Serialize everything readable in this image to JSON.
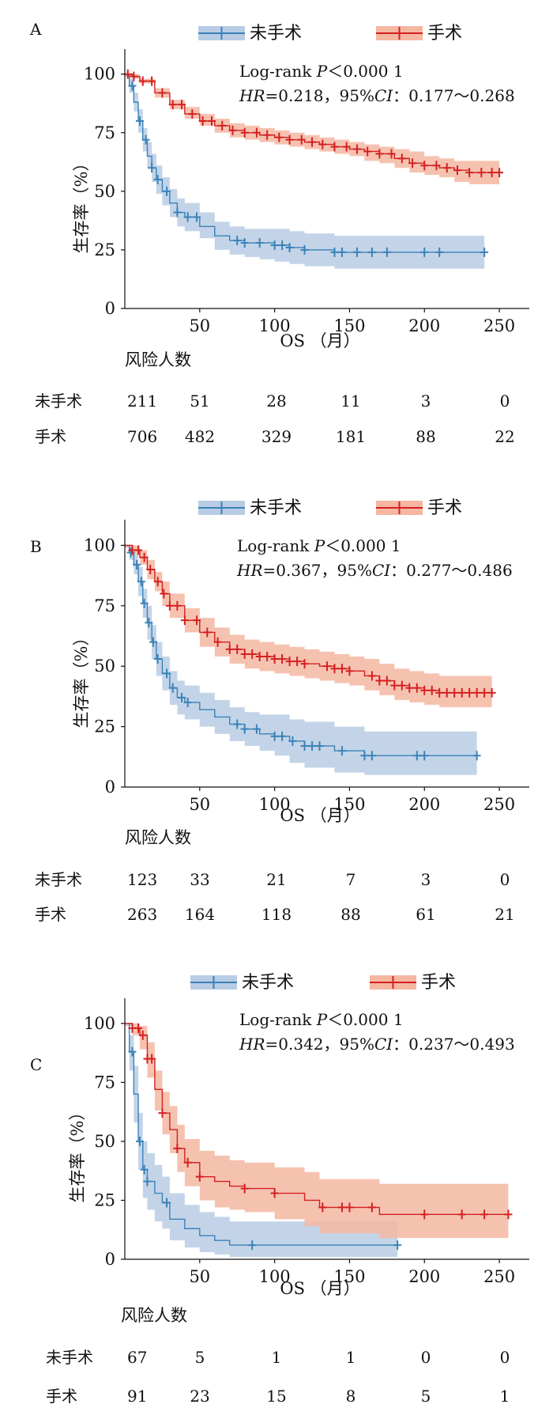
{
  "colors": {
    "unoperated": "#3a82b8",
    "unoperated_band": "#b8cce4",
    "operated": "#d42020",
    "operated_band": "#f5b7a2",
    "axis": "#111111"
  },
  "chart_data": [
    {
      "panel": "A",
      "type": "line",
      "subtype": "kaplan-meier",
      "xlabel": "OS （月）",
      "ylabel": "生存率（%）",
      "xlim": [
        0,
        270
      ],
      "ylim": [
        0,
        108
      ],
      "xticks": [
        "50",
        "100",
        "150",
        "200",
        "250"
      ],
      "yticks": [
        "0",
        "25",
        "50",
        "75",
        "100"
      ],
      "stats": {
        "line1_prefix": "Log-rank ",
        "line1_p": "P",
        "line1_rest": "＜0.000 1",
        "hr": "HR",
        "line2_mid": "=0.218，95%",
        "ci": "CI",
        "line2_end": "：0.177～0.268"
      },
      "legend_position": "top",
      "series": [
        {
          "name": "未手术",
          "x": [
            0,
            3,
            6,
            9,
            12,
            15,
            18,
            21,
            25,
            30,
            35,
            40,
            50,
            60,
            70,
            80,
            90,
            100,
            110,
            120,
            140,
            160,
            180,
            200,
            220,
            240
          ],
          "y": [
            100,
            95,
            88,
            80,
            72,
            65,
            60,
            55,
            50,
            45,
            41,
            39,
            35,
            31,
            29,
            28,
            28,
            27,
            26,
            25,
            24,
            24,
            24,
            24,
            24,
            24
          ],
          "lower": [
            99,
            92,
            84,
            75,
            67,
            60,
            54,
            49,
            44,
            39,
            35,
            33,
            30,
            25,
            23,
            22,
            21,
            20,
            19,
            18,
            17,
            17,
            17,
            17,
            17,
            17
          ],
          "upper": [
            100,
            98,
            92,
            85,
            77,
            71,
            66,
            61,
            56,
            51,
            47,
            45,
            41,
            37,
            35,
            34,
            34,
            34,
            33,
            32,
            31,
            31,
            31,
            31,
            31,
            31
          ],
          "censor_x": [
            5,
            10,
            14,
            18,
            22,
            28,
            35,
            42,
            48,
            75,
            80,
            90,
            100,
            105,
            110,
            120,
            140,
            145,
            155,
            165,
            175,
            200,
            210,
            240
          ]
        },
        {
          "name": "手术",
          "x": [
            0,
            5,
            10,
            20,
            30,
            40,
            50,
            60,
            70,
            80,
            90,
            100,
            110,
            120,
            130,
            140,
            150,
            160,
            170,
            180,
            190,
            200,
            210,
            220,
            230,
            240,
            250
          ],
          "y": [
            100,
            99,
            97,
            92,
            87,
            83,
            80,
            78,
            76,
            75,
            74,
            73,
            72,
            71,
            70,
            69,
            68,
            67,
            66,
            64,
            62,
            61,
            60,
            59,
            58,
            58,
            58
          ],
          "lower": [
            99,
            98,
            96,
            90,
            85,
            81,
            78,
            75,
            73,
            72,
            71,
            70,
            69,
            68,
            67,
            66,
            65,
            63,
            62,
            60,
            58,
            57,
            56,
            54,
            53,
            53,
            53
          ],
          "upper": [
            100,
            100,
            98,
            94,
            89,
            86,
            83,
            81,
            79,
            78,
            77,
            76,
            75,
            74,
            73,
            72,
            71,
            70,
            69,
            68,
            67,
            65,
            64,
            63,
            63,
            63,
            63
          ],
          "censor_x": [
            2,
            6,
            12,
            18,
            25,
            32,
            38,
            45,
            52,
            58,
            65,
            72,
            80,
            88,
            95,
            103,
            110,
            118,
            125,
            132,
            140,
            148,
            155,
            162,
            170,
            178,
            185,
            192,
            200,
            208,
            215,
            222,
            230,
            238,
            245,
            250
          ]
        }
      ],
      "risk_table": {
        "title": "风险人数",
        "rows": [
          {
            "label": "未手术",
            "values": [
              "211",
              "51",
              "28",
              "11",
              "3",
              "0"
            ]
          },
          {
            "label": "手术",
            "values": [
              "706",
              "482",
              "329",
              "181",
              "88",
              "22"
            ]
          }
        ]
      }
    },
    {
      "panel": "B",
      "type": "line",
      "subtype": "kaplan-meier",
      "xlabel": "OS （月）",
      "ylabel": "生存率（%）",
      "xlim": [
        0,
        270
      ],
      "ylim": [
        0,
        108
      ],
      "xticks": [
        "50",
        "100",
        "150",
        "200",
        "250"
      ],
      "yticks": [
        "0",
        "25",
        "50",
        "75",
        "100"
      ],
      "stats": {
        "line1_prefix": "Log-rank ",
        "line1_p": "P",
        "line1_rest": "＜0.000 1",
        "hr": "HR",
        "line2_mid": "=0.367，95%",
        "ci": "CI",
        "line2_end": "：0.277～0.486"
      },
      "legend_position": "top",
      "series": [
        {
          "name": "未手术",
          "x": [
            0,
            3,
            6,
            9,
            12,
            15,
            18,
            21,
            25,
            30,
            35,
            40,
            50,
            60,
            70,
            80,
            90,
            100,
            110,
            120,
            140,
            160,
            180,
            200,
            220,
            235
          ],
          "y": [
            100,
            97,
            92,
            85,
            76,
            68,
            60,
            53,
            47,
            41,
            37,
            35,
            32,
            29,
            26,
            24,
            22,
            21,
            19,
            17,
            15,
            13,
            13,
            13,
            13,
            13
          ],
          "lower": [
            99,
            94,
            88,
            79,
            70,
            61,
            53,
            46,
            40,
            34,
            30,
            28,
            25,
            22,
            19,
            17,
            15,
            13,
            10,
            8,
            6,
            5,
            5,
            5,
            5,
            5
          ],
          "upper": [
            100,
            99,
            96,
            91,
            82,
            75,
            67,
            60,
            54,
            48,
            44,
            42,
            39,
            36,
            33,
            31,
            30,
            30,
            28,
            27,
            25,
            23,
            23,
            23,
            23,
            23
          ],
          "censor_x": [
            4,
            8,
            11,
            13,
            16,
            19,
            22,
            28,
            32,
            38,
            42,
            75,
            80,
            88,
            100,
            105,
            112,
            120,
            125,
            130,
            145,
            160,
            165,
            195,
            200,
            235
          ]
        },
        {
          "name": "手术",
          "x": [
            0,
            5,
            10,
            15,
            20,
            25,
            30,
            40,
            50,
            60,
            70,
            80,
            90,
            100,
            110,
            120,
            130,
            140,
            150,
            160,
            170,
            180,
            190,
            200,
            210,
            220,
            230,
            245
          ],
          "y": [
            100,
            98,
            95,
            90,
            85,
            80,
            75,
            69,
            64,
            60,
            57,
            55,
            54,
            53,
            52,
            51,
            50,
            49,
            48,
            46,
            44,
            42,
            41,
            40,
            39,
            39,
            39,
            39
          ],
          "lower": [
            99,
            96,
            92,
            86,
            81,
            75,
            70,
            64,
            58,
            54,
            51,
            49,
            48,
            47,
            46,
            45,
            44,
            43,
            42,
            40,
            38,
            36,
            35,
            34,
            33,
            33,
            33,
            33
          ],
          "upper": [
            100,
            100,
            98,
            94,
            89,
            85,
            80,
            74,
            70,
            66,
            63,
            61,
            60,
            59,
            58,
            57,
            56,
            55,
            54,
            53,
            51,
            49,
            48,
            47,
            46,
            46,
            46,
            46
          ],
          "censor_x": [
            5,
            9,
            13,
            17,
            22,
            26,
            30,
            35,
            40,
            48,
            55,
            62,
            70,
            75,
            80,
            85,
            90,
            95,
            100,
            105,
            110,
            115,
            120,
            135,
            140,
            145,
            150,
            165,
            170,
            175,
            180,
            185,
            190,
            195,
            200,
            205,
            210,
            215,
            220,
            225,
            230,
            235,
            240,
            245
          ]
        }
      ],
      "risk_table": {
        "title": "风险人数",
        "rows": [
          {
            "label": "未手术",
            "values": [
              "123",
              "33",
              "21",
              "7",
              "3",
              "0"
            ]
          },
          {
            "label": "手术",
            "values": [
              "263",
              "164",
              "118",
              "88",
              "61",
              "21"
            ]
          }
        ]
      }
    },
    {
      "panel": "C",
      "type": "line",
      "subtype": "kaplan-meier",
      "xlabel": "OS （月）",
      "ylabel": "生存率（%）",
      "xlim": [
        0,
        270
      ],
      "ylim": [
        0,
        108
      ],
      "xticks": [
        "50",
        "100",
        "150",
        "200",
        "250"
      ],
      "yticks": [
        "0",
        "25",
        "50",
        "75",
        "100"
      ],
      "stats": {
        "line1_prefix": "Log-rank ",
        "line1_p": "P",
        "line1_rest": "＜0.000 1",
        "hr": "HR",
        "line2_mid": "=0.342，95%",
        "ci": "CI",
        "line2_end": "：0.237～0.493"
      },
      "legend_position": "top",
      "series": [
        {
          "name": "未手术",
          "x": [
            0,
            3,
            6,
            9,
            12,
            15,
            20,
            25,
            30,
            40,
            50,
            60,
            70,
            80,
            100,
            120,
            150,
            182
          ],
          "y": [
            100,
            88,
            70,
            50,
            38,
            33,
            28,
            24,
            17,
            13,
            10,
            8,
            6,
            6,
            6,
            6,
            6,
            6
          ],
          "lower": [
            99,
            80,
            58,
            38,
            26,
            21,
            16,
            13,
            8,
            5,
            3,
            2,
            1,
            1,
            1,
            1,
            1,
            1
          ],
          "upper": [
            100,
            95,
            82,
            62,
            50,
            45,
            40,
            35,
            28,
            23,
            20,
            18,
            16,
            16,
            16,
            16,
            16,
            16
          ],
          "censor_x": [
            5,
            10,
            13,
            15,
            28,
            85,
            182
          ]
        },
        {
          "name": "手术",
          "x": [
            0,
            5,
            10,
            15,
            20,
            25,
            30,
            35,
            40,
            50,
            60,
            70,
            80,
            100,
            120,
            130,
            150,
            170,
            200,
            230,
            256
          ],
          "y": [
            100,
            98,
            95,
            85,
            72,
            62,
            55,
            47,
            41,
            35,
            33,
            31,
            30,
            28,
            25,
            22,
            22,
            19,
            19,
            19,
            19
          ],
          "lower": [
            99,
            95,
            89,
            77,
            63,
            53,
            45,
            37,
            31,
            25,
            22,
            21,
            20,
            17,
            14,
            11,
            11,
            9,
            9,
            9,
            9
          ],
          "upper": [
            100,
            100,
            99,
            92,
            80,
            71,
            65,
            57,
            51,
            46,
            44,
            42,
            41,
            39,
            37,
            34,
            34,
            32,
            32,
            32,
            32
          ],
          "censor_x": [
            5,
            9,
            12,
            15,
            18,
            25,
            35,
            42,
            50,
            80,
            100,
            132,
            145,
            150,
            165,
            200,
            225,
            240,
            256
          ]
        }
      ],
      "risk_table": {
        "title": "风险人数",
        "rows": [
          {
            "label": "未手术",
            "values": [
              "67",
              "5",
              "1",
              "1",
              "0",
              "0"
            ]
          },
          {
            "label": "手术",
            "values": [
              "91",
              "23",
              "15",
              "8",
              "5",
              "1"
            ]
          }
        ]
      }
    }
  ]
}
